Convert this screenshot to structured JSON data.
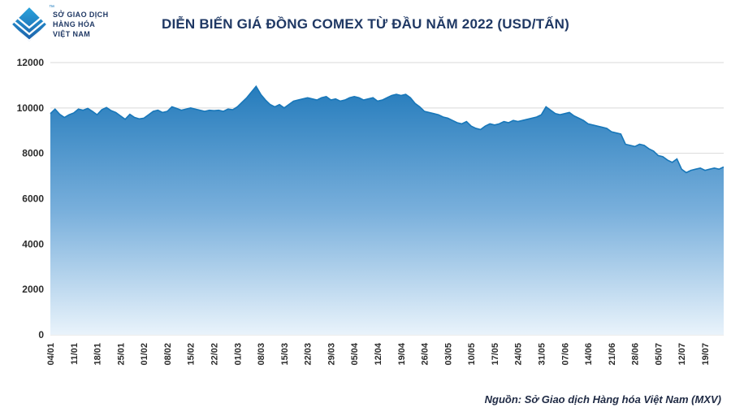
{
  "header": {
    "title": "DIỄN BIẾN GIÁ ĐỒNG COMEX TỪ ĐẦU NĂM 2022 (USD/TẤN)",
    "logo": {
      "line1": "SỞ GIAO DỊCH",
      "line2": "HÀNG HÓA",
      "line3": "VIỆT NAM",
      "tm": "™"
    }
  },
  "footer": {
    "source": "Nguồn: Sở Giao dịch Hàng hóa Việt Nam (MXV)"
  },
  "chart_data": {
    "type": "area",
    "title": "DIỄN BIẾN GIÁ ĐỒNG COMEX TỪ ĐẦU NĂM 2022 (USD/TẤN)",
    "xlabel": "",
    "ylabel": "USD/TẤN",
    "ylim": [
      0,
      12000
    ],
    "y_ticks": [
      0,
      2000,
      4000,
      6000,
      8000,
      10000,
      12000
    ],
    "grid": "horizontal",
    "legend": "off",
    "x_tick_labels": [
      "04/01",
      "11/01",
      "18/01",
      "25/01",
      "01/02",
      "08/02",
      "15/02",
      "22/02",
      "01/03",
      "08/03",
      "15/03",
      "22/03",
      "29/03",
      "05/04",
      "12/04",
      "19/04",
      "26/04",
      "03/05",
      "10/05",
      "17/05",
      "24/05",
      "31/05",
      "07/06",
      "14/06",
      "21/06",
      "28/06",
      "05/07",
      "12/07",
      "19/07"
    ],
    "points_per_tick": 5,
    "values": [
      9750,
      9950,
      9720,
      9580,
      9700,
      9780,
      9950,
      9900,
      9980,
      9850,
      9700,
      9920,
      10020,
      9880,
      9800,
      9650,
      9500,
      9720,
      9580,
      9520,
      9550,
      9700,
      9850,
      9900,
      9800,
      9850,
      10050,
      9980,
      9900,
      9950,
      10000,
      9950,
      9900,
      9850,
      9900,
      9880,
      9900,
      9850,
      9950,
      9920,
      10050,
      10250,
      10450,
      10700,
      10950,
      10600,
      10350,
      10150,
      10050,
      10150,
      10000,
      10150,
      10300,
      10350,
      10400,
      10450,
      10400,
      10350,
      10450,
      10500,
      10350,
      10400,
      10300,
      10350,
      10450,
      10500,
      10450,
      10350,
      10400,
      10450,
      10300,
      10350,
      10450,
      10550,
      10600,
      10550,
      10600,
      10450,
      10200,
      10050,
      9850,
      9800,
      9750,
      9700,
      9600,
      9550,
      9450,
      9350,
      9300,
      9400,
      9200,
      9100,
      9050,
      9200,
      9300,
      9250,
      9300,
      9400,
      9350,
      9450,
      9400,
      9450,
      9500,
      9550,
      9600,
      9700,
      10050,
      9900,
      9750,
      9700,
      9750,
      9800,
      9650,
      9550,
      9450,
      9300,
      9250,
      9200,
      9150,
      9100,
      8950,
      8900,
      8850,
      8400,
      8350,
      8300,
      8400,
      8350,
      8200,
      8100,
      7900,
      7850,
      7700,
      7600,
      7750,
      7300,
      7150,
      7250,
      7300,
      7350,
      7250,
      7300,
      7350,
      7300,
      7400
    ],
    "colors": {
      "line": "#1877b9",
      "fill_top": "#1572b6",
      "fill_mid": "#7ab0dc",
      "fill_bottom": "#e9f3fb",
      "grid": "#d9d9d9",
      "title": "#1f3864",
      "axis_text": "#2b2b2b"
    }
  }
}
